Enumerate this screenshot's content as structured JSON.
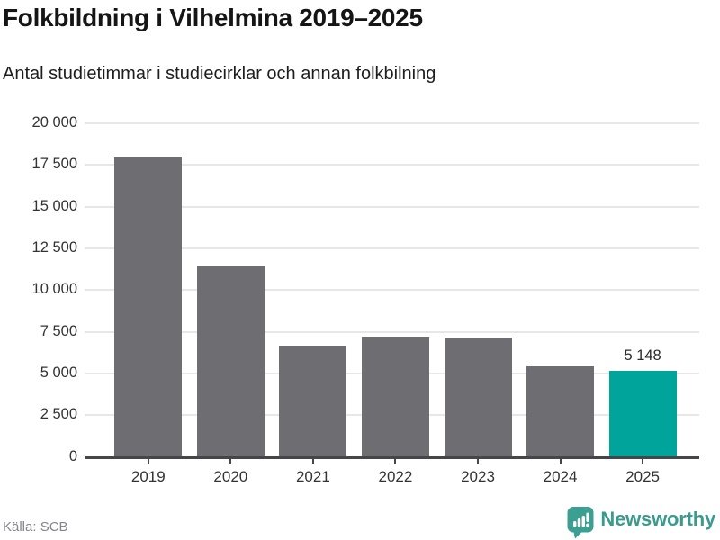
{
  "title": "Folkbildning i Vilhelmina 2019–2025",
  "subtitle": "Antal studietimmar i studiecirklar och annan folkbilning",
  "source_note": "Källa: SCB",
  "branding": {
    "wordmark": "Newsworthy"
  },
  "colors": {
    "bar": "#6d6d72",
    "bar_highlight": "#00a49a",
    "gridline": "#e7e7e7",
    "axis_line": "#46464a",
    "axis_text": "#333333",
    "data_label_text": "#2b2b2b",
    "source_text": "#85858d",
    "brand": "#3a9a8d"
  },
  "chart_data": {
    "type": "bar",
    "title": "Folkbildning i Vilhelmina 2019–2025",
    "subtitle": "Antal studietimmar i studiecirklar och annan folkbilning",
    "categories": [
      "2019",
      "2020",
      "2021",
      "2022",
      "2023",
      "2024",
      "2025"
    ],
    "values": [
      17950,
      11400,
      6650,
      7200,
      7150,
      5400,
      5148
    ],
    "highlight_index": 6,
    "highlighted_category": "2025",
    "data_labels": [
      null,
      null,
      null,
      null,
      null,
      null,
      "5 148"
    ],
    "ylim": [
      0,
      20000
    ],
    "ytick_step": 2500,
    "ytick_labels": [
      "0",
      "2 500",
      "5 000",
      "7 500",
      "10 000",
      "12 500",
      "15 000",
      "17 500",
      "20 000"
    ],
    "xlabel": "",
    "ylabel": "",
    "grid": true,
    "legend": false,
    "source": "Källa: SCB"
  }
}
